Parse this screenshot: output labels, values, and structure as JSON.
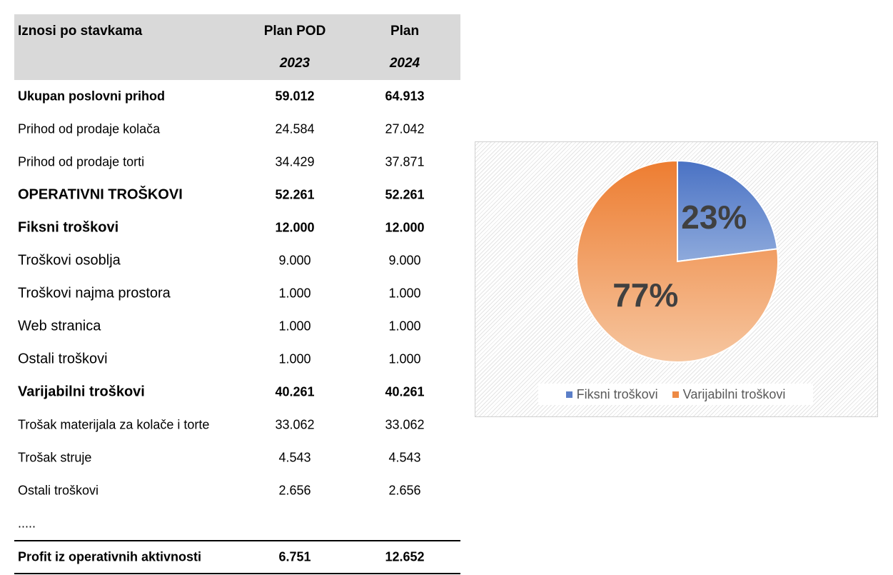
{
  "table": {
    "header": {
      "label": "Iznosi po stavkama",
      "col1_title": "Plan POD",
      "col2_title": "Plan",
      "col1_year": "2023",
      "col2_year": "2024"
    },
    "rows": [
      {
        "label": "Ukupan poslovni prihod",
        "v1": "59.012",
        "v2": "64.913"
      },
      {
        "label": "Prihod od prodaje kolača",
        "v1": "24.584",
        "v2": "27.042"
      },
      {
        "label": "Prihod od prodaje torti",
        "v1": "34.429",
        "v2": "37.871"
      },
      {
        "label": "OPERATIVNI TROŠKOVI",
        "v1": "52.261",
        "v2": "52.261"
      },
      {
        "label": "Fiksni troškovi",
        "v1": "12.000",
        "v2": "12.000"
      },
      {
        "label": "Troškovi osoblja",
        "v1": "9.000",
        "v2": "9.000"
      },
      {
        "label": "Troškovi najma prostora",
        "v1": "1.000",
        "v2": "1.000"
      },
      {
        "label": "Web stranica",
        "v1": "1.000",
        "v2": "1.000"
      },
      {
        "label": "Ostali troškovi",
        "v1": "1.000",
        "v2": "1.000"
      },
      {
        "label": "Varijabilni troškovi",
        "v1": "40.261",
        "v2": "40.261"
      },
      {
        "label": "Trošak materijala za kolače i torte",
        "v1": "33.062",
        "v2": "33.062"
      },
      {
        "label": "Trošak struje",
        "v1": "4.543",
        "v2": "4.543"
      },
      {
        "label": "Ostali troškovi",
        "v1": "2.656",
        "v2": "2.656"
      },
      {
        "label": ".....",
        "v1": "",
        "v2": ""
      },
      {
        "label": "Profit iz operativnih aktivnosti",
        "v1": "6.751",
        "v2": "12.652"
      }
    ]
  },
  "chart_data": {
    "type": "pie",
    "categories": [
      "Fiksni troškovi",
      "Varijabilni troškovi"
    ],
    "values": [
      23,
      77
    ],
    "data_labels": [
      "23%",
      "77%"
    ],
    "colors": [
      "#5b7fc8",
      "#f0a060"
    ],
    "legend_position": "bottom",
    "title": ""
  }
}
